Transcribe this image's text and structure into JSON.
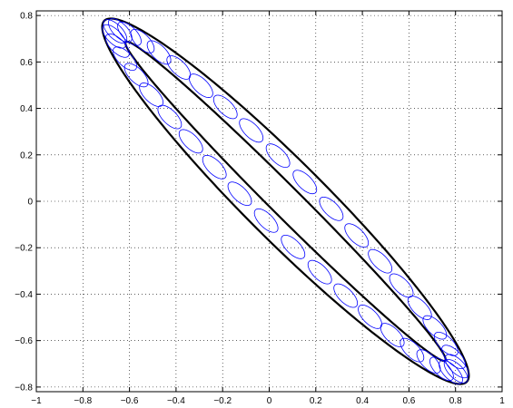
{
  "chart_data": {
    "type": "line",
    "title": "",
    "xlabel": "",
    "ylabel": "",
    "xlim": [
      -1,
      1
    ],
    "ylim": [
      -0.82,
      0.82
    ],
    "grid": true,
    "grid_style": "dotted",
    "x_ticks": [
      -1,
      -0.8,
      -0.6,
      -0.4,
      -0.2,
      0,
      0.2,
      0.4,
      0.6,
      0.8,
      1
    ],
    "x_tick_labels": [
      "−1",
      "−0.8",
      "−0.6",
      "−0.4",
      "−0.2",
      "0",
      "0.2",
      "0.4",
      "0.6",
      "0.8",
      "1"
    ],
    "y_ticks": [
      -0.8,
      -0.6,
      -0.4,
      -0.2,
      0,
      0.2,
      0.4,
      0.6,
      0.8
    ],
    "y_tick_labels": [
      "−0.8",
      "−0.6",
      "−0.4",
      "−0.2",
      "0",
      "0.2",
      "0.4",
      "0.6",
      "0.8"
    ],
    "series": [
      {
        "kind": "ellipse",
        "center": [
          0.07,
          0.0
        ],
        "semi_axes": [
          1.1,
          0.17
        ],
        "rotation_deg": -45,
        "color": "#000000"
      },
      {
        "kind": "ellipse",
        "center": [
          0.07,
          0.0
        ],
        "semi_axes": [
          0.97,
          0.065
        ],
        "rotation_deg": -45,
        "color": "#000000"
      },
      {
        "kind": "ellipse_chain",
        "count": 40,
        "path_center": [
          0.07,
          0.0
        ],
        "path_semi_axes": [
          1.035,
          0.1175
        ],
        "path_rotation_deg": -45,
        "small_semi_axes": [
          0.065,
          0.03
        ],
        "small_rotation_deg": -45,
        "color": "#0000ff"
      }
    ]
  }
}
